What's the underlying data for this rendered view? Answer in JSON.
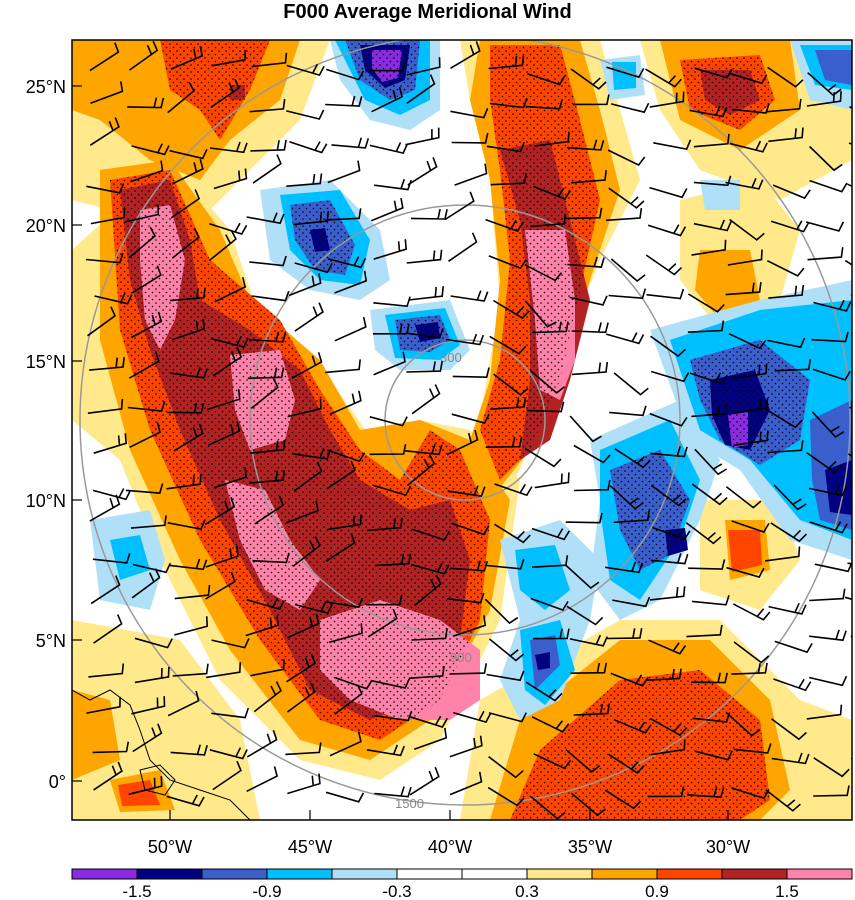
{
  "title": "F000 Average Meridional Wind",
  "lat_labels": [
    "25°N",
    "20°N",
    "15°N",
    "10°N",
    "5°N",
    "0°"
  ],
  "lon_labels": [
    "50°W",
    "45°W",
    "40°W",
    "35°W",
    "30°W"
  ],
  "colorbar": {
    "colors": [
      "#8a2be2",
      "#000080",
      "#3a5fcd",
      "#00bfff",
      "#b0e0f8",
      "#ffffff",
      "#ffffff",
      "#ffe98a",
      "#ffa500",
      "#ff4500",
      "#b22222",
      "#ff82ab"
    ],
    "labels": [
      "-1.5",
      "-0.9",
      "-0.3",
      "0.3",
      "0.9",
      "1.5"
    ]
  },
  "range_rings": [
    "300",
    "900",
    "1500"
  ]
}
